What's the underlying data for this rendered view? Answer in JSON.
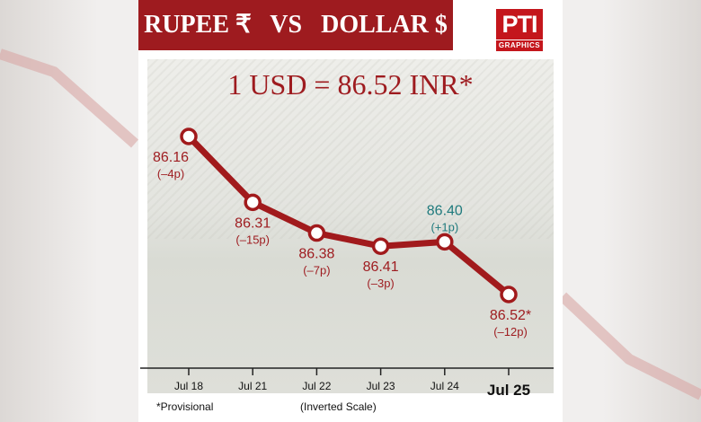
{
  "header": {
    "title": "RUPEE ₹   VS   DOLLAR $",
    "logo_text": "PTI",
    "logo_sub": "GRAPHICS"
  },
  "headline": "1 USD = 86.52 INR*",
  "colors": {
    "accent": "#9e1b1f",
    "line": "#a11a1c",
    "up_label": "#1f7a7d"
  },
  "chart_data": {
    "type": "line",
    "categories": [
      "Jul 18",
      "Jul 21",
      "Jul 22",
      "Jul 23",
      "Jul 24",
      "Jul 25"
    ],
    "series": [
      {
        "values": [
          86.16,
          86.31,
          86.38,
          86.41,
          86.4,
          86.52
        ]
      }
    ],
    "value_labels": [
      "86.16",
      "86.31",
      "86.38",
      "86.41",
      "86.40",
      "86.52*"
    ],
    "change_labels": [
      "(–4p)",
      "(–15p)",
      "(–7p)",
      "(–3p)",
      "(+1p)",
      "(–12p)"
    ],
    "label_direction": [
      "down",
      "down",
      "down",
      "down",
      "up",
      "down"
    ],
    "inverted_y": true,
    "highlight_last_tick": true,
    "grid": false
  },
  "footnotes": {
    "provisional": "*Provisional",
    "scale_note": "(Inverted Scale)"
  }
}
